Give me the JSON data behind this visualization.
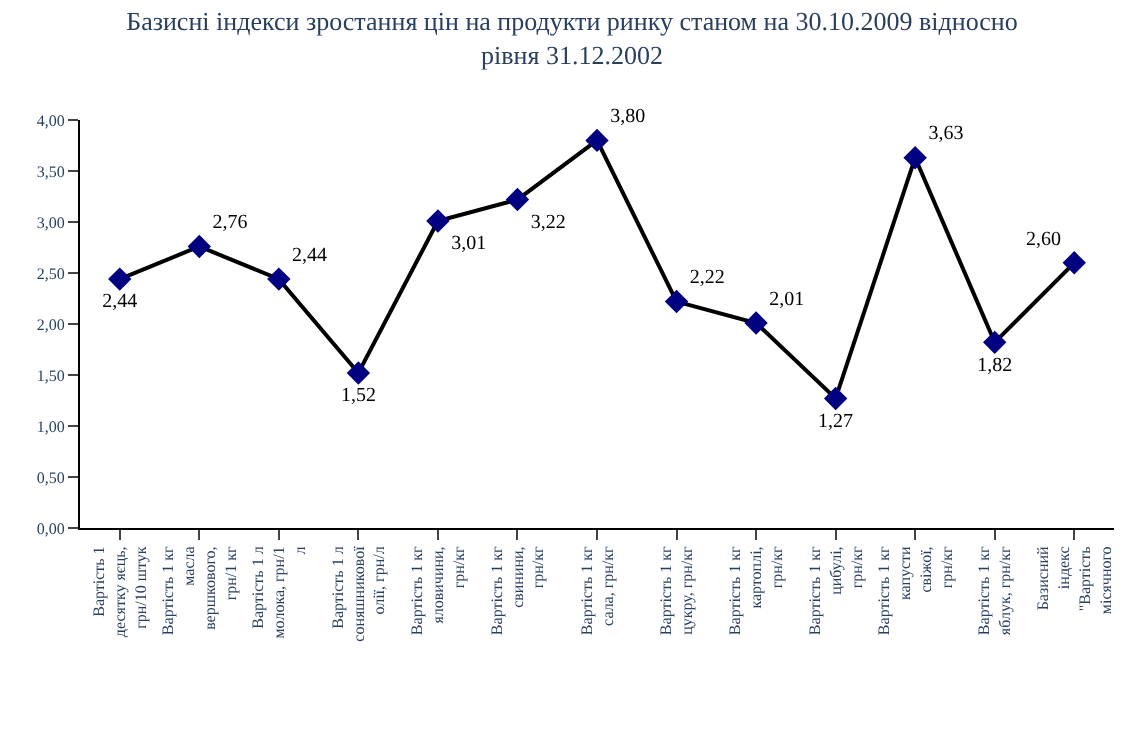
{
  "chart_data": {
    "type": "line",
    "title": "Базисні індекси зростання цін на продукти ринку станом на 30.10.2009 відносно рівня 31.12.2002",
    "categories": [
      "Вартість 1 десятку яєць, грн/10 штук",
      "Вартість 1 кг масла вершкового, грн/1 кг",
      "Вартість 1 л молока, грн/1 л",
      "Вартість 1 л соняшникової олії, грн/л",
      "Вартість 1 кг яловичини, грн/кг",
      "Вартість 1 кг свинини, грн/кг",
      "Вартість 1 кг сала, грн/кг",
      "Вартість 1 кг цукру, грн/кг",
      "Вартість 1 кг картоплі, грн/кг",
      "Вартість 1 кг цибулі, грн/кг",
      "Вартість 1 кг капусти свіжої, грн/кг",
      "Вартість 1 кг яблук, грн/кг",
      "Базисний індекс \"Вартість місячного"
    ],
    "series": [
      {
        "color": "#000080",
        "values": [
          2.44,
          2.76,
          2.44,
          1.52,
          3.01,
          3.22,
          3.8,
          2.22,
          2.01,
          1.27,
          3.63,
          1.82,
          2.6
        ]
      }
    ],
    "value_labels": [
      "2,44",
      "2,76",
      "2,44",
      "1,52",
      "3,01",
      "3,22",
      "3,80",
      "2,22",
      "2,01",
      "1,27",
      "3,63",
      "1,82",
      "2,60"
    ],
    "ylim": [
      0,
      4
    ],
    "yticks": [
      {
        "value": 0,
        "label": "0,00"
      },
      {
        "value": 0.5,
        "label": "0,50"
      },
      {
        "value": 1,
        "label": "1,00"
      },
      {
        "value": 1.5,
        "label": "1,50"
      },
      {
        "value": 2,
        "label": "2,00"
      },
      {
        "value": 2.5,
        "label": "2,50"
      },
      {
        "value": 3,
        "label": "3,00"
      },
      {
        "value": 3.5,
        "label": "3,50"
      },
      {
        "value": 4,
        "label": "4,00"
      }
    ],
    "marker": "diamond",
    "line_style": "solid",
    "legend": false
  }
}
